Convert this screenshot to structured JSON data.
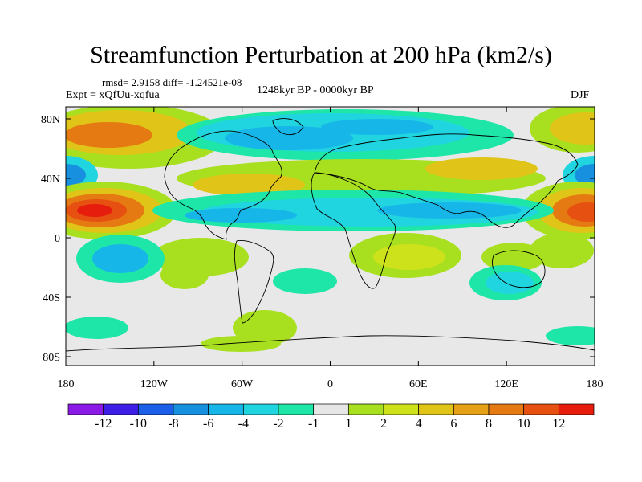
{
  "title": "Streamfunction Perturbation at 200 hPa (km2/s)",
  "stats": "rmsd= 2.9158 diff= -1.24521e-08",
  "experiment": "Expt = xQfUu-xqfua",
  "period": "1248kyr BP - 0000kyr BP",
  "season": "DJF",
  "lat_labels": [
    "80N",
    "40N",
    "0",
    "40S",
    "80S"
  ],
  "lon_labels": [
    "180",
    "120W",
    "60W",
    "0",
    "60E",
    "120E",
    "180"
  ],
  "colorbar": {
    "colors": [
      "#8c1ae6",
      "#3c1ee6",
      "#1b5ee8",
      "#1890e0",
      "#17b6e8",
      "#20d4e0",
      "#1ee6a8",
      "#e6e6e6",
      "#a8e020",
      "#cde21a",
      "#e0c417",
      "#e6a015",
      "#e67a12",
      "#e65010",
      "#e61c0c"
    ],
    "labels": [
      "-12",
      "-10",
      "-8",
      "-6",
      "-4",
      "-2",
      "-1",
      "1",
      "2",
      "4",
      "6",
      "8",
      "10",
      "12"
    ]
  }
}
